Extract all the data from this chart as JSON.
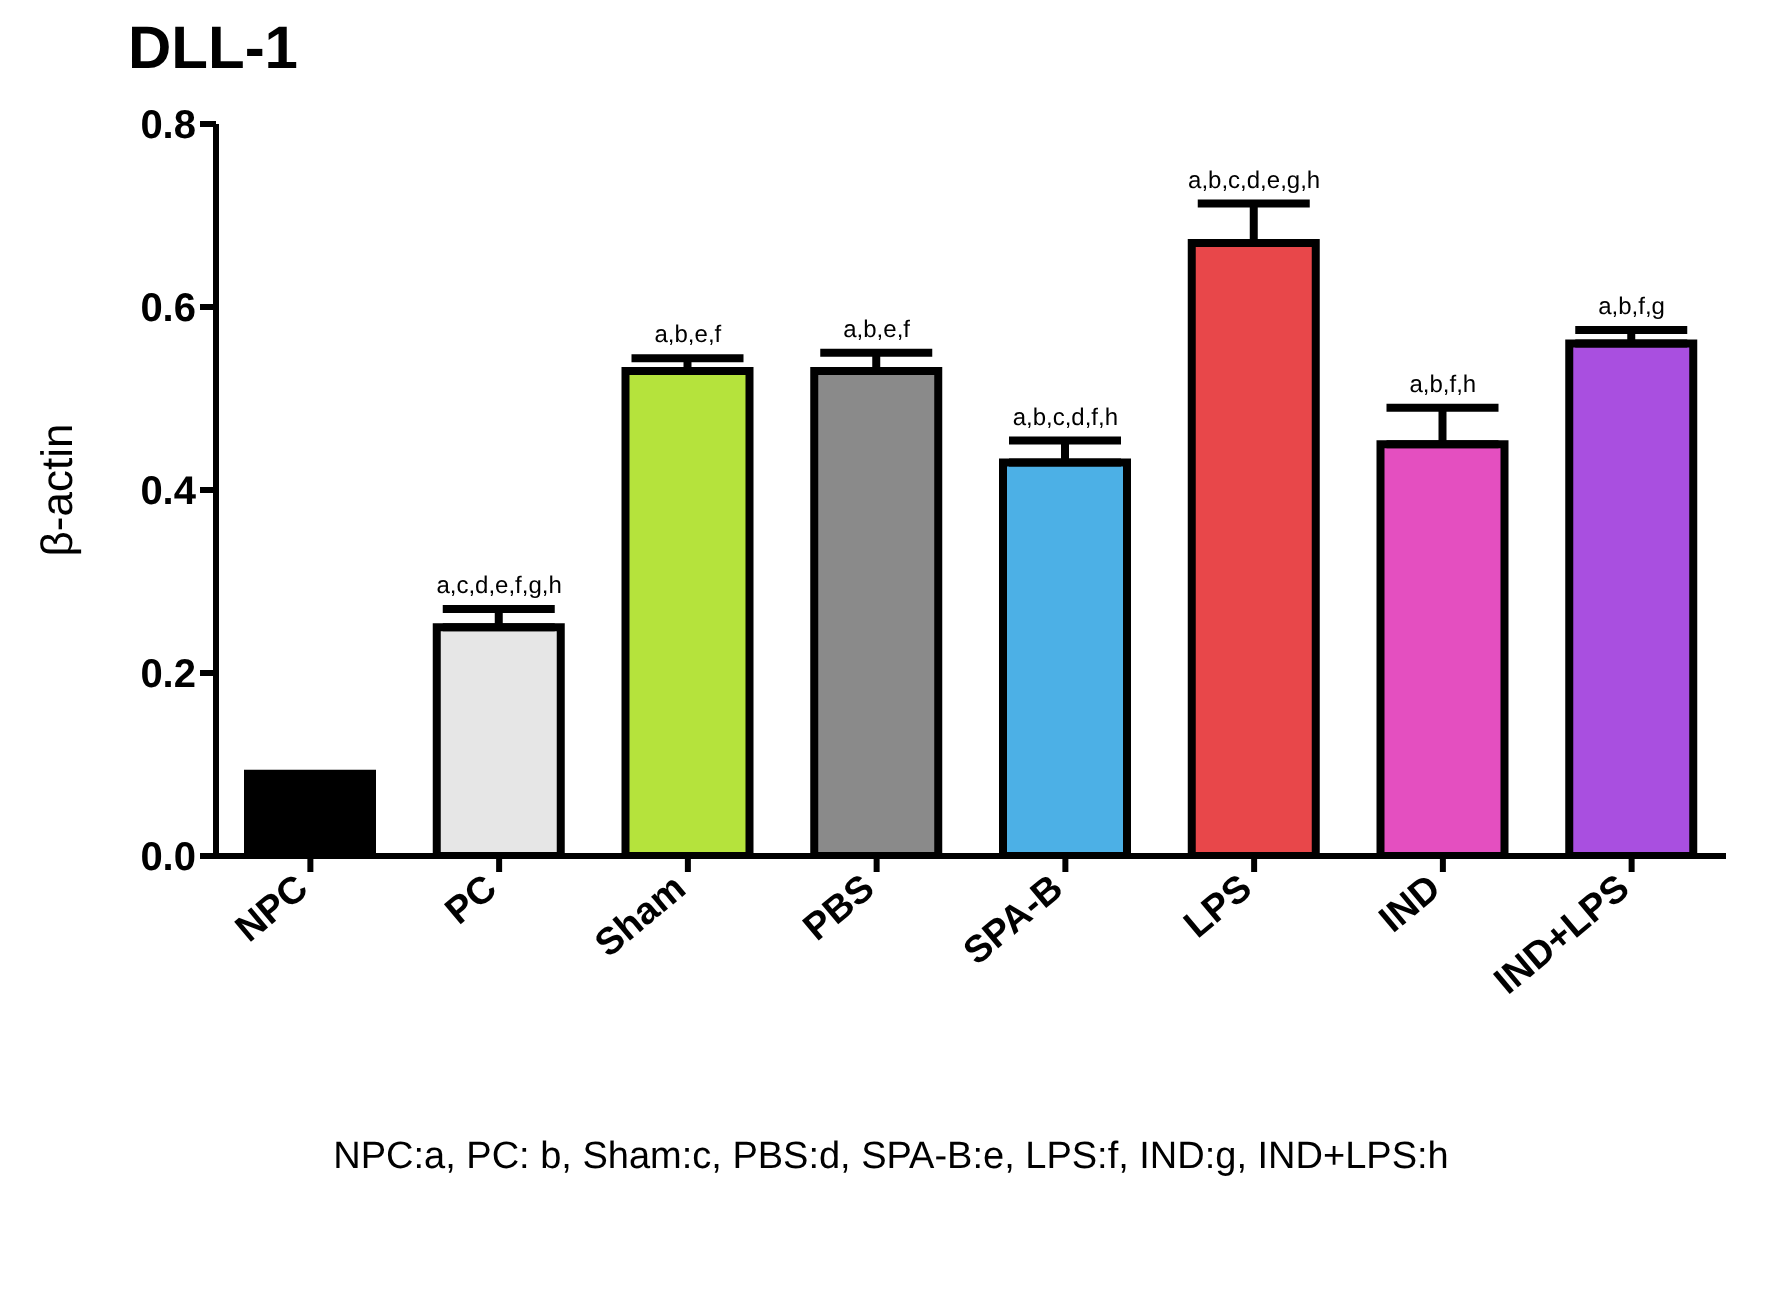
{
  "chart_data": {
    "type": "bar",
    "title": "DLL-1",
    "ylabel": "β-actin",
    "categories": [
      "NPC",
      "PC",
      "Sham",
      "PBS",
      "SPA-B",
      "LPS",
      "IND",
      "IND+LPS"
    ],
    "values": [
      0.09,
      0.25,
      0.53,
      0.53,
      0.43,
      0.67,
      0.45,
      0.56
    ],
    "errors": [
      null,
      [
        0.25,
        0.27
      ],
      [
        0.53,
        0.544
      ],
      [
        0.53,
        0.55
      ],
      [
        0.43,
        0.454
      ],
      [
        0.67,
        0.713
      ],
      [
        0.45,
        0.49
      ],
      [
        0.56,
        0.575
      ]
    ],
    "colors": [
      "#000000",
      "#e6e6e6",
      "#b5e33c",
      "#8a8a8a",
      "#4cb0e6",
      "#e8474a",
      "#e44fc0",
      "#a94fe0"
    ],
    "ylim": [
      0,
      0.8
    ],
    "yticks": [
      {
        "value": 0,
        "label": "0.0"
      },
      0.2,
      0.4,
      0.6,
      0.8
    ],
    "grid": false,
    "annotations": [
      {
        "text": "a,c,d,e,f,g,h",
        "x": "PC",
        "y": 0.25
      },
      {
        "text": "a,b,e,f",
        "x": "Sham",
        "y": 0.53
      },
      {
        "text": "a,b,e,f",
        "x": "PBS",
        "y": 0.53
      },
      {
        "text": "a,b,c,d,f,h",
        "x": "SPA-B",
        "y": 0.43
      },
      {
        "text": "a,b,c,d,e,g,h",
        "x": "LPS",
        "y": 0.67
      },
      {
        "text": "a,b,f,h",
        "x": "IND",
        "y": 0.45
      },
      {
        "text": "a,b,f,g",
        "x": "IND+LPS",
        "y": 0.56
      },
      "NPC:a, PC: b, Sham:c, PBS:d, SPA-B:e, LPS:f, IND:g, IND+LPS:h"
    ]
  }
}
